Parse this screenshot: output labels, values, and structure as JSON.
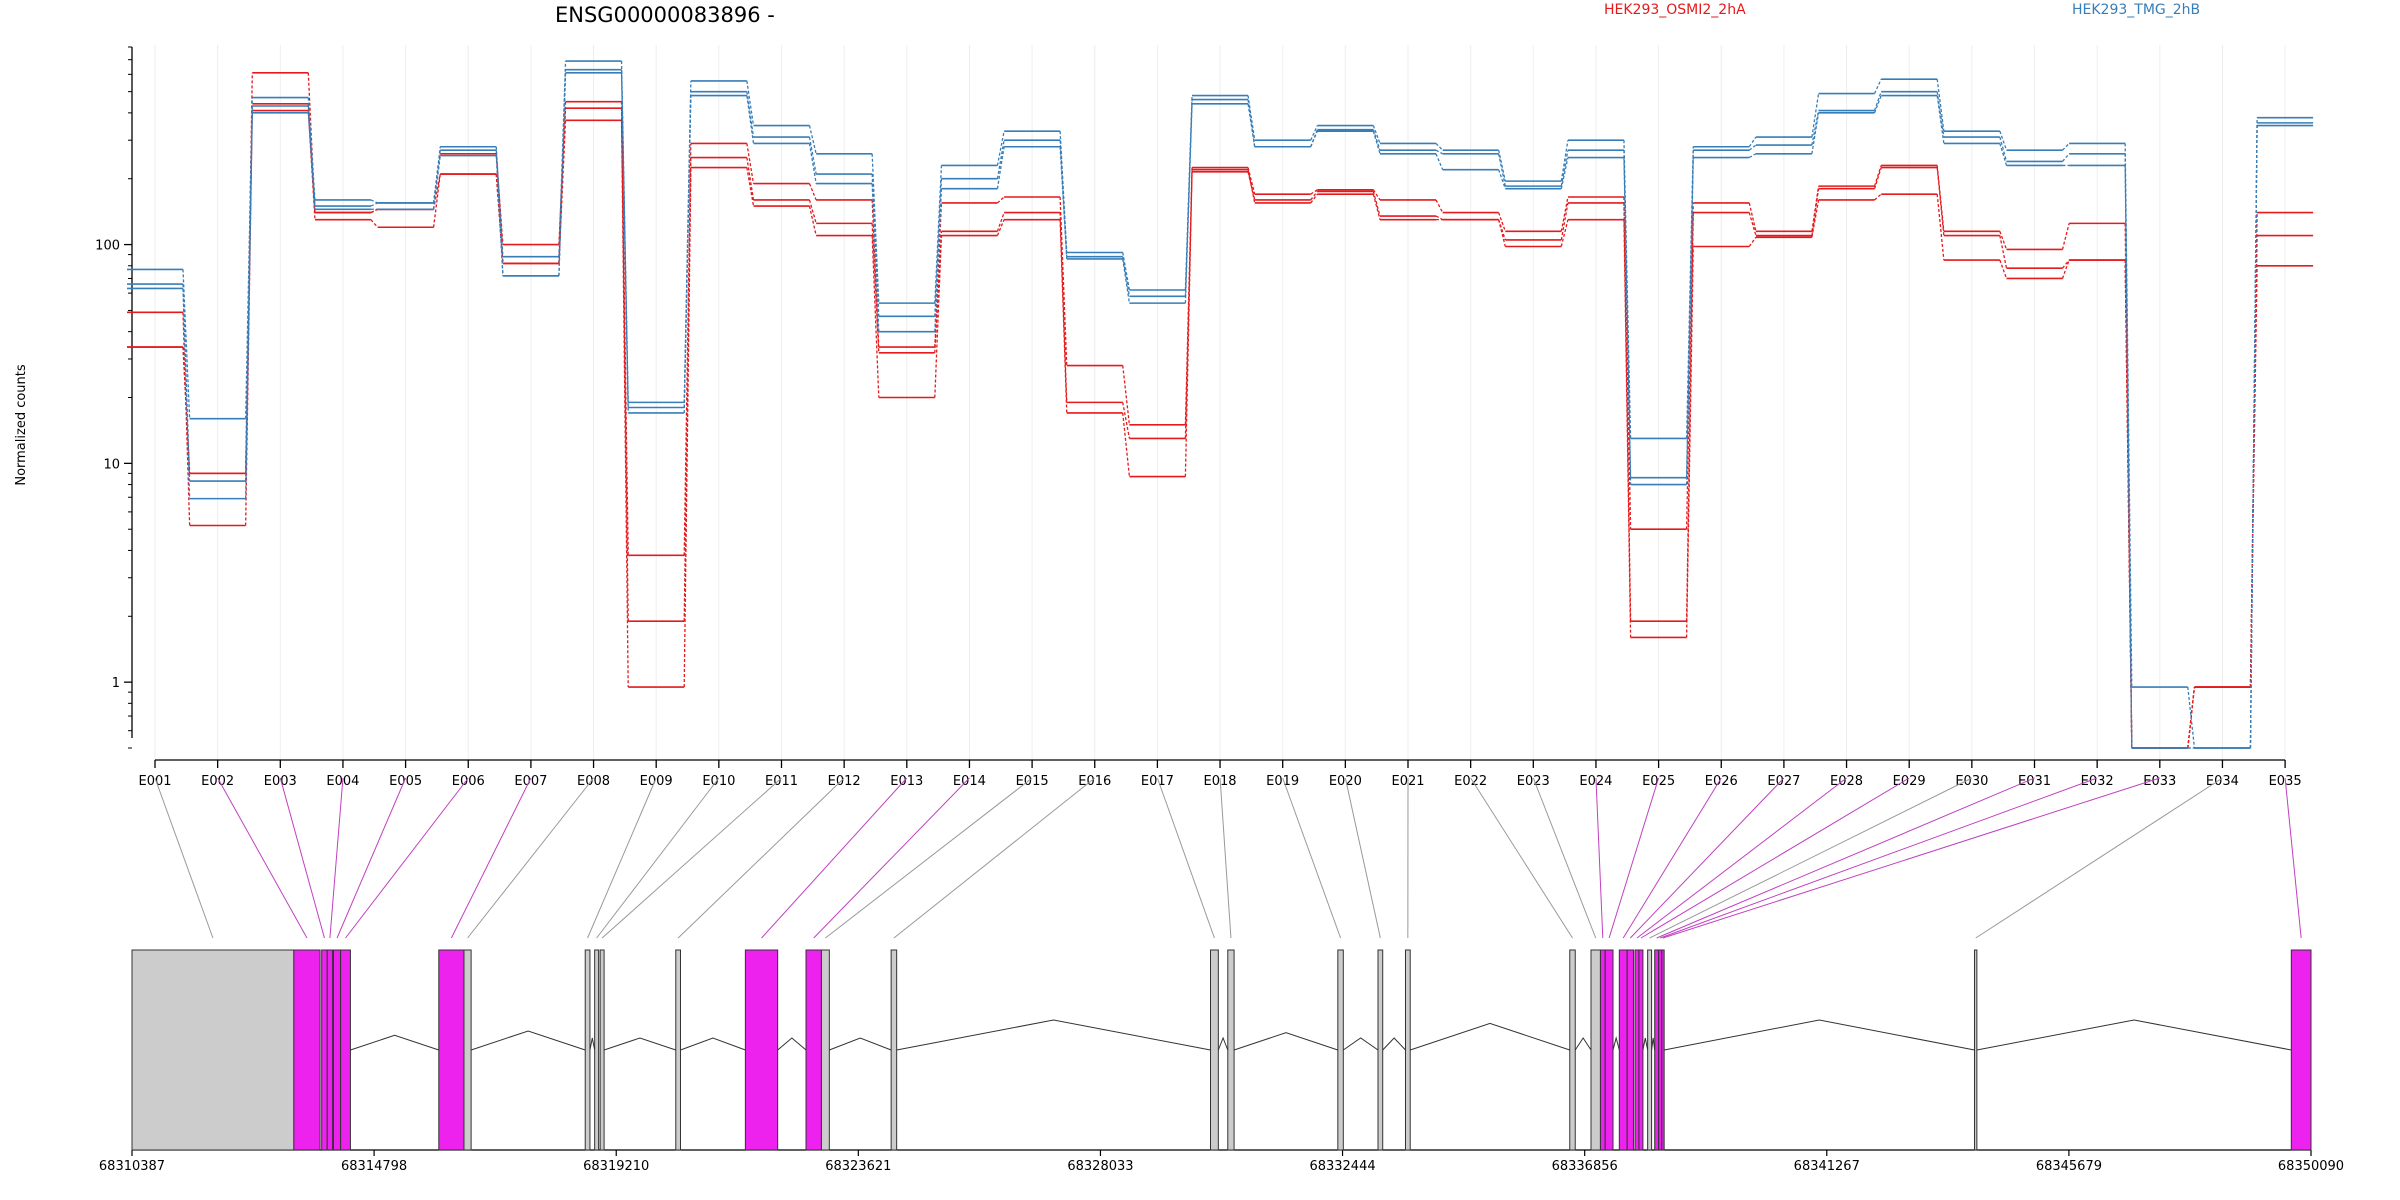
{
  "chart_data": {
    "type": "line",
    "title": "ENSG00000083896 -",
    "xlabel": "",
    "ylabel": "Normalized counts",
    "yscale": "log",
    "ylim": [
      0.5,
      800
    ],
    "yticks": [
      {
        "value": 1,
        "label": "1"
      },
      {
        "value": 10,
        "label": "10"
      },
      {
        "value": 100,
        "label": "100"
      }
    ],
    "grid": "vertical",
    "legend": "top-right",
    "categories": [
      "E001",
      "E002",
      "E003",
      "E004",
      "E005",
      "E006",
      "E007",
      "E008",
      "E009",
      "E010",
      "E011",
      "E012",
      "E013",
      "E014",
      "E015",
      "E016",
      "E017",
      "E018",
      "E019",
      "E020",
      "E021",
      "E022",
      "E023",
      "E024",
      "E025",
      "E026",
      "E027",
      "E028",
      "E029",
      "E030",
      "E031",
      "E032",
      "E033",
      "E034",
      "E035"
    ],
    "groups": [
      {
        "name": "HEK293_OSMI2_2hA",
        "color": "#e41a1c"
      },
      {
        "name": "HEK293_TMG_2hB",
        "color": "#377eb8"
      }
    ],
    "series": [
      {
        "group": 0,
        "values": [
          34,
          9,
          610,
          140,
          145,
          260,
          100,
          450,
          3.8,
          290,
          190,
          160,
          34,
          155,
          165,
          28,
          15,
          225,
          170,
          178,
          160,
          140,
          115,
          165,
          5,
          155,
          115,
          185,
          230,
          115,
          95,
          125,
          0.5,
          0.95,
          140
        ]
      },
      {
        "group": 0,
        "values": [
          34,
          9,
          440,
          140,
          145,
          210,
          82,
          420,
          1.9,
          250,
          160,
          125,
          32,
          115,
          140,
          19,
          13,
          215,
          160,
          175,
          135,
          130,
          105,
          155,
          1.9,
          140,
          110,
          180,
          225,
          110,
          78,
          85,
          0.5,
          0.95,
          110
        ]
      },
      {
        "group": 0,
        "values": [
          49,
          5.2,
          410,
          130,
          120,
          210,
          82,
          370,
          0.95,
          225,
          150,
          110,
          20,
          110,
          130,
          17,
          8.7,
          220,
          155,
          170,
          130,
          130,
          98,
          130,
          1.6,
          98,
          108,
          160,
          170,
          85,
          70,
          85,
          0.5,
          0.95,
          80
        ]
      },
      {
        "group": 1,
        "values": [
          77,
          16,
          470,
          160,
          155,
          280,
          88,
          690,
          19,
          560,
          350,
          260,
          54,
          230,
          330,
          92,
          62,
          480,
          300,
          350,
          290,
          270,
          195,
          300,
          13,
          280,
          310,
          490,
          570,
          330,
          270,
          290,
          0.95,
          0.5,
          380
        ]
      },
      {
        "group": 1,
        "values": [
          66,
          8.3,
          430,
          150,
          155,
          270,
          72,
          630,
          18,
          500,
          310,
          210,
          47,
          200,
          300,
          88,
          58,
          460,
          280,
          335,
          270,
          260,
          185,
          270,
          8.6,
          270,
          285,
          410,
          500,
          310,
          240,
          260,
          0.5,
          0.5,
          360
        ]
      },
      {
        "group": 1,
        "values": [
          63,
          6.9,
          400,
          145,
          145,
          255,
          72,
          610,
          17,
          480,
          290,
          190,
          40,
          180,
          280,
          86,
          54,
          440,
          280,
          330,
          260,
          220,
          180,
          250,
          8,
          250,
          260,
          400,
          480,
          290,
          230,
          230,
          0.5,
          0.5,
          350
        ]
      }
    ],
    "gene_model": {
      "coordinate_ticks": [
        "68310387",
        "68314798",
        "68319210",
        "68323621",
        "68328033",
        "68332444",
        "68336856",
        "68341267",
        "68345679",
        "68350090"
      ],
      "features": [
        {
          "exon": "E001",
          "start": 68310387,
          "end": 68313336,
          "fill": "#cccccc",
          "tested": false
        },
        {
          "exon": "E002",
          "start": 68313336,
          "end": 68313814,
          "fill": "#ee22ee",
          "tested": true
        },
        {
          "exon": "E003",
          "start": 68313843,
          "end": 68313944,
          "fill": "#ee22ee",
          "tested": true
        },
        {
          "exon": "E004",
          "start": 68313944,
          "end": 68314042,
          "fill": "#ee22ee",
          "tested": true
        },
        {
          "exon": "E005",
          "start": 68314058,
          "end": 68314188,
          "fill": "#ee22ee",
          "tested": true
        },
        {
          "exon": "E006",
          "start": 68314188,
          "end": 68314367,
          "fill": "#ee22ee",
          "tested": true
        },
        {
          "exon": "E007",
          "start": 68315977,
          "end": 68316436,
          "fill": "#ee22ee",
          "tested": true
        },
        {
          "exon": "E008",
          "start": 68316436,
          "end": 68316566,
          "fill": "#cccccc",
          "tested": false
        },
        {
          "exon": "E009",
          "start": 68318645,
          "end": 68318731,
          "fill": "#cccccc",
          "tested": false
        },
        {
          "exon": "E010",
          "start": 68318817,
          "end": 68318889,
          "fill": "#cccccc",
          "tested": false
        },
        {
          "exon": "E011",
          "start": 68318917,
          "end": 68318989,
          "fill": "#cccccc",
          "tested": false
        },
        {
          "exon": "E012",
          "start": 68320295,
          "end": 68320381,
          "fill": "#cccccc",
          "tested": false
        },
        {
          "exon": "E013",
          "start": 68321563,
          "end": 68322152,
          "fill": "#ee22ee",
          "tested": true
        },
        {
          "exon": "E014",
          "start": 68322668,
          "end": 68322949,
          "fill": "#ee22ee",
          "tested": true
        },
        {
          "exon": "E015",
          "start": 68322949,
          "end": 68323093,
          "fill": "#cccccc",
          "tested": false
        },
        {
          "exon": "E016",
          "start": 68324219,
          "end": 68324320,
          "fill": "#cccccc",
          "tested": false
        },
        {
          "exon": "E017",
          "start": 68330038,
          "end": 68330181,
          "fill": "#cccccc",
          "tested": false
        },
        {
          "exon": "E018",
          "start": 68330353,
          "end": 68330468,
          "fill": "#cccccc",
          "tested": false
        },
        {
          "exon": "E019",
          "start": 68332358,
          "end": 68332458,
          "fill": "#cccccc",
          "tested": false
        },
        {
          "exon": "E020",
          "start": 68333090,
          "end": 68333176,
          "fill": "#cccccc",
          "tested": false
        },
        {
          "exon": "E021",
          "start": 68333591,
          "end": 68333677,
          "fill": "#cccccc",
          "tested": false
        },
        {
          "exon": "E022",
          "start": 68336584,
          "end": 68336684,
          "fill": "#cccccc",
          "tested": false
        },
        {
          "exon": "E023",
          "start": 68336971,
          "end": 68337143,
          "fill": "#cccccc",
          "tested": false
        },
        {
          "exon": "E024",
          "start": 68337143,
          "end": 68337229,
          "fill": "#ee22ee",
          "tested": true
        },
        {
          "exon": "E025",
          "start": 68337229,
          "end": 68337372,
          "fill": "#ee22ee",
          "tested": true
        },
        {
          "exon": "E026",
          "start": 68337487,
          "end": 68337630,
          "fill": "#ee22ee",
          "tested": true
        },
        {
          "exon": "E027",
          "start": 68337630,
          "end": 68337745,
          "fill": "#ee22ee",
          "tested": true
        },
        {
          "exon": "E028",
          "start": 68337773,
          "end": 68337845,
          "fill": "#ee22ee",
          "tested": true
        },
        {
          "exon": "E029",
          "start": 68337845,
          "end": 68337917,
          "fill": "#ee22ee",
          "tested": true
        },
        {
          "exon": "E030",
          "start": 68338003,
          "end": 68338075,
          "fill": "#cccccc",
          "tested": false
        },
        {
          "exon": "E031",
          "start": 68338132,
          "end": 68338204,
          "fill": "#ee22ee",
          "tested": true
        },
        {
          "exon": "E032",
          "start": 68338204,
          "end": 68338261,
          "fill": "#ee22ee",
          "tested": true
        },
        {
          "exon": "E033",
          "start": 68338261,
          "end": 68338304,
          "fill": "#ee22ee",
          "tested": true
        },
        {
          "exon": "E034",
          "start": 68343959,
          "end": 68344002,
          "fill": "#cccccc",
          "tested": false
        },
        {
          "exon": "E035",
          "start": 68349731,
          "end": 68350090,
          "fill": "#ee22ee",
          "tested": true
        }
      ]
    }
  }
}
